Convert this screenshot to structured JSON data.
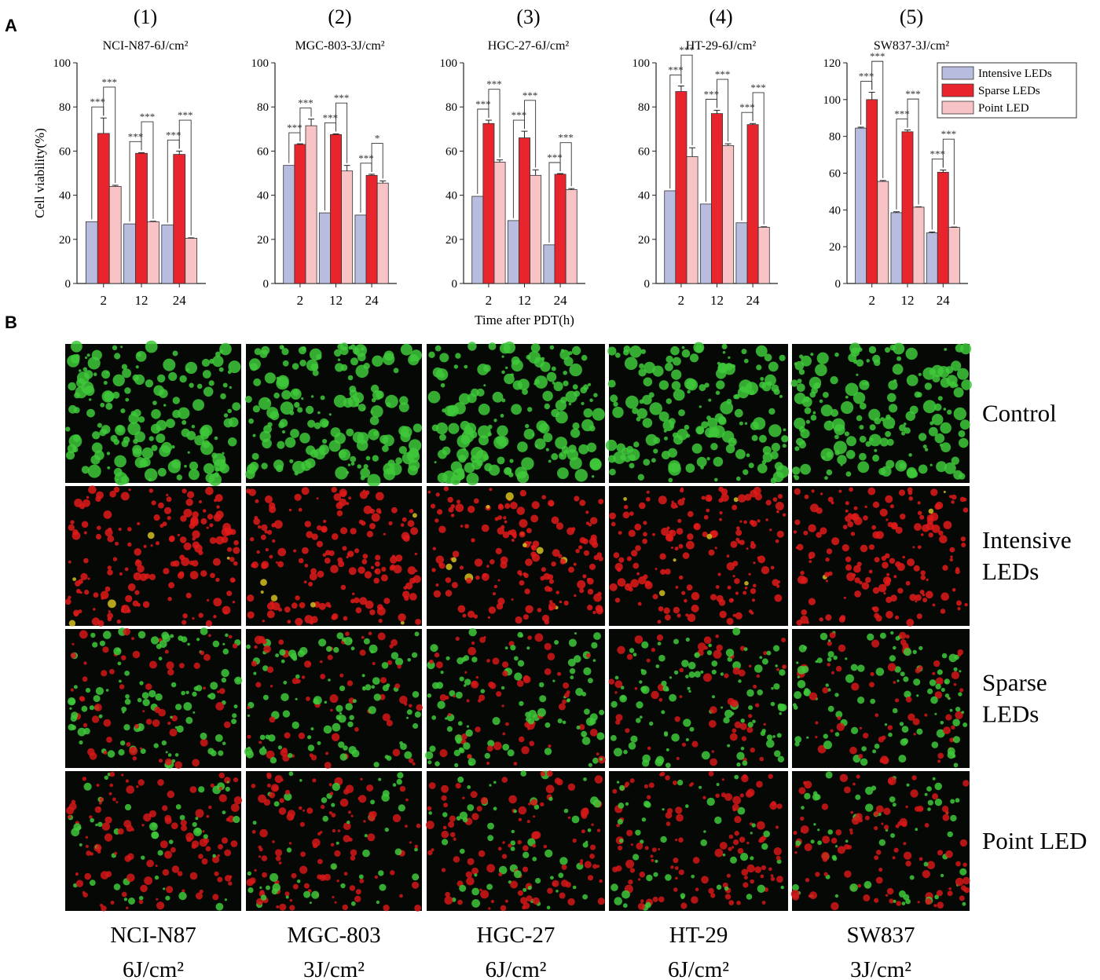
{
  "panel_labels": {
    "a": "A",
    "b": "B"
  },
  "chart_data": [
    {
      "type": "bar",
      "label": "(1)",
      "title": "NCI-N87-6J/cm²",
      "ylabel": "Cell viability(%)",
      "categories": [
        "2",
        "12",
        "24"
      ],
      "ylim": [
        0,
        100
      ],
      "yticks": [
        0,
        20,
        40,
        60,
        80,
        100
      ],
      "series": [
        {
          "color": "#b8bde0",
          "values": [
            28,
            27,
            26.5
          ]
        },
        {
          "color": "#e8242c",
          "values": [
            68,
            59,
            58.5
          ],
          "errors": [
            7,
            0.3,
            1.5
          ]
        },
        {
          "color": "#f7c3c4",
          "values": [
            44,
            28,
            20.5
          ],
          "errors": [
            0.5,
            0.2,
            0.2
          ]
        }
      ],
      "significance": [
        [
          "***",
          "***"
        ],
        [
          "***",
          "***"
        ],
        [
          "***",
          "***"
        ]
      ]
    },
    {
      "type": "bar",
      "label": "(2)",
      "title": "MGC-803-3J/cm²",
      "categories": [
        "2",
        "12",
        "24"
      ],
      "ylim": [
        0,
        100
      ],
      "yticks": [
        0,
        20,
        40,
        60,
        80,
        100
      ],
      "series": [
        {
          "color": "#b8bde0",
          "values": [
            53.5,
            32,
            31
          ]
        },
        {
          "color": "#e8242c",
          "values": [
            63,
            67.5,
            49
          ],
          "errors": [
            0.3,
            0.3,
            0.5
          ]
        },
        {
          "color": "#f7c3c4",
          "values": [
            71.5,
            51,
            45.5
          ],
          "errors": [
            3,
            2.5,
            1
          ]
        }
      ],
      "significance": [
        [
          "***",
          "***"
        ],
        [
          "***",
          "***"
        ],
        [
          "***",
          "*"
        ]
      ]
    },
    {
      "type": "bar",
      "label": "(3)",
      "title": "HGC-27-6J/cm²",
      "xlabel": "Time after PDT(h)",
      "categories": [
        "2",
        "12",
        "24"
      ],
      "ylim": [
        0,
        100
      ],
      "yticks": [
        0,
        20,
        40,
        60,
        80,
        100
      ],
      "series": [
        {
          "color": "#b8bde0",
          "values": [
            39.5,
            28.5,
            17.5
          ]
        },
        {
          "color": "#e8242c",
          "values": [
            72.5,
            66,
            49.5
          ],
          "errors": [
            1.5,
            3,
            0.3
          ]
        },
        {
          "color": "#f7c3c4",
          "values": [
            55,
            49,
            42.5
          ],
          "errors": [
            1,
            2.5,
            0.5
          ]
        }
      ],
      "significance": [
        [
          "***",
          "***"
        ],
        [
          "***",
          "***"
        ],
        [
          "***",
          "***"
        ]
      ]
    },
    {
      "type": "bar",
      "label": "(4)",
      "title": "HT-29-6J/cm²",
      "categories": [
        "2",
        "12",
        "24"
      ],
      "ylim": [
        0,
        100
      ],
      "yticks": [
        0,
        20,
        40,
        60,
        80,
        100
      ],
      "series": [
        {
          "color": "#b8bde0",
          "values": [
            42,
            36,
            27.5
          ]
        },
        {
          "color": "#e8242c",
          "values": [
            87,
            77,
            72
          ],
          "errors": [
            2.5,
            1.5,
            0.5
          ]
        },
        {
          "color": "#f7c3c4",
          "values": [
            57.5,
            62.5,
            25.5
          ],
          "errors": [
            4,
            0.8,
            0.2
          ]
        }
      ],
      "significance": [
        [
          "***",
          "***"
        ],
        [
          "***",
          "***"
        ],
        [
          "***",
          "***"
        ]
      ]
    },
    {
      "type": "bar",
      "label": "(5)",
      "title": "SW837-3J/cm²",
      "legend": "upper right",
      "categories": [
        "2",
        "12",
        "24"
      ],
      "ylim": [
        0,
        120
      ],
      "yticks": [
        0,
        20,
        40,
        60,
        80,
        100,
        120
      ],
      "series": [
        {
          "name": "Intensive LEDs",
          "color": "#b8bde0",
          "values": [
            84.5,
            38.5,
            27.5
          ],
          "errors": [
            0.5,
            0.5,
            0.5
          ]
        },
        {
          "name": "Sparse LEDs",
          "color": "#e8242c",
          "values": [
            100,
            82.5,
            60.5
          ],
          "errors": [
            4,
            1,
            1.2
          ]
        },
        {
          "name": "Point LED",
          "color": "#f7c3c4",
          "values": [
            55.5,
            41.5,
            30.5
          ],
          "errors": [
            0.5,
            0.2,
            0.2
          ]
        }
      ],
      "significance": [
        [
          "***",
          "***"
        ],
        [
          "***",
          "***"
        ],
        [
          "***",
          "***"
        ]
      ]
    }
  ],
  "images": {
    "row_labels": [
      [
        "Control"
      ],
      [
        "Intensive",
        "LEDs"
      ],
      [
        "Sparse",
        "LEDs"
      ],
      [
        "Point LED"
      ]
    ],
    "column_labels": [
      [
        "NCI-N87",
        "6J/cm²"
      ],
      [
        "MGC-803",
        "3J/cm²"
      ],
      [
        "HGC-27",
        "6J/cm²"
      ],
      [
        "HT-29",
        "6J/cm²"
      ],
      [
        "SW837",
        "3J/cm²"
      ]
    ]
  }
}
